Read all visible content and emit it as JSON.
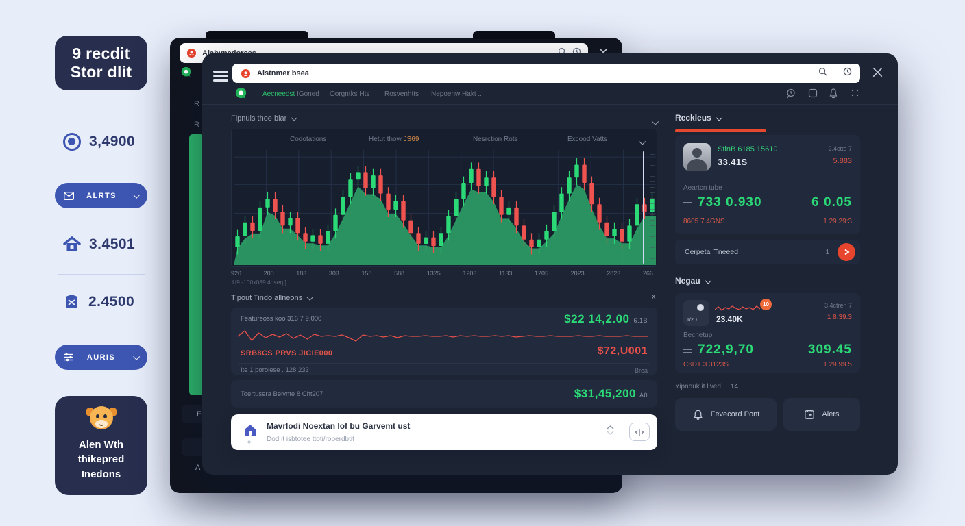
{
  "theme": {
    "green": "#2bd977",
    "red": "#ee5253",
    "orange": "#ef6a3a",
    "blue": "#3d56b2",
    "navy": "#272e4e",
    "page_bg": "#e8edfa"
  },
  "sidebar": {
    "logo_line1": "9 recdit",
    "logo_line2": "Stor dlit",
    "stats": [
      {
        "value": "3,4900"
      },
      {
        "value": "3.4501"
      },
      {
        "value": "2.4500"
      }
    ],
    "buttons": [
      {
        "label": "ALRTS"
      },
      {
        "label": "AURIS"
      }
    ],
    "promo": {
      "line1": "Alen Wth",
      "line2": "thikepred",
      "line3": "Inedons"
    }
  },
  "back_window": {
    "address": "Alabynedorces",
    "fragments": {
      "a": "R",
      "b": "R",
      "c": "E",
      "d": "A"
    }
  },
  "browser": {
    "address": "Alstnmer bsea",
    "tabs": [
      {
        "label": "Aecneedst",
        "suffix": " IGoned"
      },
      {
        "label": "Oorgntks Hts"
      },
      {
        "label": "Rosvenhtts"
      },
      {
        "label": "Nepoenw Hakt .."
      }
    ]
  },
  "market": {
    "header": "Fipnuls thoe blar",
    "columns": [
      {
        "label": "Codotations"
      },
      {
        "label": "Hetut thow "
      },
      {
        "label": "Nesrction Rots"
      },
      {
        "label": "Excood Vatts"
      }
    ],
    "column2_highlight": "JS69",
    "footnote": "U9 -100x089 4oseq.]"
  },
  "tipout": {
    "header": "Tipout Tindo allneons",
    "close": "x",
    "row1_label": "Featureoss koo 316 7 9.000",
    "row1_value": "$22 14,2.00",
    "row1_badge": "6.1B",
    "row2_label": "SRB8CS PRVS JICIE000",
    "row2_value": "$72,U001",
    "row3_label": "Ite 1 porolese . 128 233",
    "row3_value": "Brea",
    "row4_label": "Toertusera Belvnte 8 Cht207",
    "row4_value": "$31,45,200",
    "row4_badge": "A0"
  },
  "composer": {
    "title": "Mavrlodi Noextan lof bu Garvemt ust",
    "subtitle": "Dod it isbtotee ttoti/roperdbtit"
  },
  "panel": {
    "header": "Reckleus",
    "card1": {
      "name": "StinB 6185 15610",
      "amount": "33.41S",
      "meta": "2.4ctto  7",
      "metric": "5.883",
      "label": "Aeartcn tube",
      "big": "733 0.930",
      "big2": "6 0.05",
      "sub": "8605  7.4GNS",
      "sub2": "1 29 29:3"
    },
    "carousel": {
      "label": "Cerpetal Tneeed",
      "count": "1"
    },
    "section2": "Negau",
    "card2": {
      "avatar": "1/2D",
      "badge": "10",
      "name": "23.40K",
      "meta": "3.4ctren  7",
      "metric": "1 8.39.3",
      "label": "Becnetup",
      "big": "722,9,70",
      "big2": "309.45",
      "sub": "C6DT  3 3123S",
      "sub2": "1 29.99.5"
    },
    "footer_label": "Yipnouk it lived",
    "footer_num": "14",
    "buttons": [
      {
        "label": "Fevecord Pont"
      },
      {
        "label": "Alers"
      }
    ]
  },
  "chart_data": {
    "type": "candlestick",
    "title": "",
    "xlabel": "",
    "ylabel": "",
    "x_labels": [
      "920",
      "200",
      "183",
      "303",
      "158",
      "588",
      "1325",
      "1203",
      "1133",
      "1205",
      "2023",
      "2823",
      "266"
    ],
    "up_color": "#2bd977",
    "down_color": "#ef5350",
    "area_color": "#2c9f66",
    "candles": [
      [
        15,
        25
      ],
      [
        25,
        38
      ],
      [
        38,
        30
      ],
      [
        30,
        52
      ],
      [
        52,
        60
      ],
      [
        60,
        48
      ],
      [
        48,
        35
      ],
      [
        35,
        42
      ],
      [
        42,
        28
      ],
      [
        28,
        20
      ],
      [
        20,
        26
      ],
      [
        26,
        18
      ],
      [
        18,
        30
      ],
      [
        30,
        45
      ],
      [
        45,
        62
      ],
      [
        62,
        78
      ],
      [
        78,
        85
      ],
      [
        85,
        70
      ],
      [
        70,
        82
      ],
      [
        82,
        65
      ],
      [
        65,
        50
      ],
      [
        50,
        58
      ],
      [
        58,
        40
      ],
      [
        40,
        28
      ],
      [
        28,
        18
      ],
      [
        18,
        24
      ],
      [
        24,
        16
      ],
      [
        16,
        28
      ],
      [
        28,
        44
      ],
      [
        44,
        60
      ],
      [
        60,
        75
      ],
      [
        75,
        88
      ],
      [
        88,
        72
      ],
      [
        72,
        80
      ],
      [
        80,
        62
      ],
      [
        62,
        45
      ],
      [
        45,
        52
      ],
      [
        52,
        35
      ],
      [
        35,
        22
      ],
      [
        22,
        15
      ],
      [
        15,
        22
      ],
      [
        22,
        30
      ],
      [
        30,
        48
      ],
      [
        48,
        65
      ],
      [
        65,
        80
      ],
      [
        80,
        92
      ],
      [
        92,
        75
      ],
      [
        75,
        55
      ],
      [
        55,
        38
      ],
      [
        38,
        25
      ],
      [
        25,
        32
      ],
      [
        32,
        20
      ],
      [
        20,
        35
      ],
      [
        35,
        55
      ],
      [
        55,
        48
      ],
      [
        48,
        60
      ]
    ],
    "tipout_sparkline": [
      12,
      4,
      18,
      7,
      14,
      9,
      13,
      8,
      15,
      10,
      16,
      9,
      12,
      11,
      12,
      10,
      14,
      19,
      10,
      12,
      11,
      13,
      11,
      14,
      11,
      12,
      12,
      11,
      12,
      12,
      11,
      13,
      11,
      12,
      11,
      12,
      12,
      11,
      12,
      11,
      13,
      12,
      11,
      12,
      12,
      11,
      12,
      12,
      12,
      11,
      12,
      12,
      11,
      12,
      12,
      12,
      11,
      12,
      12,
      12
    ],
    "mini_sparkline": [
      9,
      5,
      10,
      6,
      8,
      4,
      7,
      9,
      5,
      8,
      6,
      9,
      4,
      8
    ]
  }
}
